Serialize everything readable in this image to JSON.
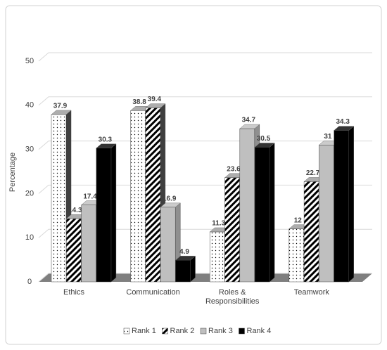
{
  "chart_data": {
    "type": "bar3d",
    "y_label": "Percentage",
    "categories": [
      "Ethics",
      "Communication",
      "Roles & Responsibilities",
      "Teamwork"
    ],
    "series": [
      {
        "name": "Rank 1",
        "color": "#ffffff",
        "fill_style": "dots",
        "values": [
          37.9,
          38.8,
          11.3,
          12
        ]
      },
      {
        "name": "Rank 2",
        "color": "#000000",
        "fill_style": "stripes",
        "values": [
          14.3,
          39.4,
          23.6,
          22.7
        ]
      },
      {
        "name": "Rank 3",
        "color": "#bfbfbf",
        "fill_style": "solid",
        "values": [
          17.4,
          16.9,
          34.7,
          31
        ]
      },
      {
        "name": "Rank 4",
        "color": "#000000",
        "fill_style": "solid",
        "values": [
          30.3,
          4.9,
          30.5,
          34.3
        ]
      }
    ],
    "ylim": [
      0,
      50
    ],
    "yticks": [
      0,
      10,
      20,
      30,
      40,
      50
    ],
    "grid": true,
    "legend": "bottom"
  }
}
